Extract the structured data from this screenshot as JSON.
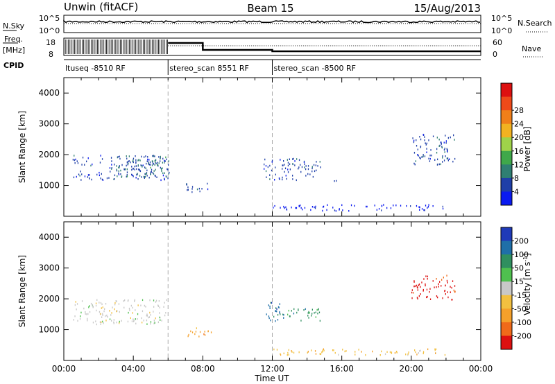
{
  "header": {
    "station": "Unwin (fitACF)",
    "beam": "Beam 15",
    "date": "15/Aug/2013"
  },
  "strip_labels": {
    "nsky": "N.Sky",
    "nsky_top": "10^5",
    "nsky_bottom": "10^0",
    "nsearch": "N.Search",
    "nsearch_top": "10^5",
    "nsearch_bottom": "10^0",
    "freq_line1": "Freq.",
    "freq_line2": "[MHz]",
    "freq_top": "18",
    "freq_bottom": "8",
    "nave": "Nave",
    "nave_top": "60",
    "nave_bottom": "0",
    "cpid": "CPID"
  },
  "cpid_segments": [
    {
      "label": "ltuseq -8510 RF",
      "start": 0,
      "end": 6
    },
    {
      "label": "stereo_scan 8551 RF",
      "start": 6,
      "end": 12
    },
    {
      "label": "stereo_scan -8500 RF",
      "start": 12,
      "end": 24
    }
  ],
  "colors": {
    "power_scale": [
      "#0a1af0",
      "#1f3fa8",
      "#2f7f72",
      "#3fa84a",
      "#9fd24a",
      "#f2b221",
      "#f07f1a",
      "#ee4a1a",
      "#dd1010"
    ],
    "velocity_scale": [
      "#1f3ab8",
      "#1f6fa8",
      "#2f8f5f",
      "#4fc04f",
      "#c8c8c8",
      "#f2c040",
      "#f5a02a",
      "#f06a1a",
      "#dd1010"
    ]
  },
  "chart_data": [
    {
      "type": "heatmap",
      "name_panel": "power",
      "xlabel": "Time UT",
      "ylabel": "Slant Range [km]",
      "x_range_hours": [
        0,
        24
      ],
      "x_ticks": [
        "00:00",
        "04:00",
        "08:00",
        "12:00",
        "16:00",
        "20:00",
        "00:00"
      ],
      "ylim": [
        0,
        4500
      ],
      "y_ticks": [
        1000,
        2000,
        3000,
        4000
      ],
      "colorbar_label": "Power [dB]",
      "colorbar_ticks": [
        "4",
        "8",
        "12",
        "16",
        "20",
        "24",
        "28"
      ],
      "scatter_regions": [
        {
          "t": [
            0.5,
            6.0
          ],
          "r": [
            1200,
            2000
          ],
          "level": 1
        },
        {
          "t": [
            3.0,
            6.1
          ],
          "r": [
            1300,
            2000
          ],
          "level": 2
        },
        {
          "t": [
            7.0,
            8.5
          ],
          "r": [
            800,
            1100
          ],
          "level": 1
        },
        {
          "t": [
            11.5,
            14.8
          ],
          "r": [
            1200,
            1900
          ],
          "level": 1
        },
        {
          "t": [
            15.5,
            16.2
          ],
          "r": [
            1100,
            1200
          ],
          "level": 1
        },
        {
          "t": [
            20.0,
            22.5
          ],
          "r": [
            1700,
            2700
          ],
          "level": 1
        },
        {
          "t": [
            12.0,
            22.0
          ],
          "r": [
            200,
            400
          ],
          "level": 0
        }
      ]
    },
    {
      "type": "heatmap",
      "name_panel": "velocity",
      "xlabel": "Time UT",
      "ylabel": "Slant Range [km]",
      "x_range_hours": [
        0,
        24
      ],
      "x_ticks": [
        "00:00",
        "04:00",
        "08:00",
        "12:00",
        "16:00",
        "20:00",
        "00:00"
      ],
      "ylim": [
        0,
        4500
      ],
      "y_ticks": [
        1000,
        2000,
        3000,
        4000
      ],
      "colorbar_label": "Velocity [m s^-1]",
      "colorbar_ticks": [
        "200",
        "100",
        "50",
        "15",
        "-15",
        "-50",
        "-100",
        "-200"
      ],
      "scatter_regions": [
        {
          "t": [
            0.5,
            6.0
          ],
          "r": [
            1200,
            2000
          ],
          "level": 4
        },
        {
          "t": [
            7.0,
            8.5
          ],
          "r": [
            800,
            1100
          ],
          "level": 6
        },
        {
          "t": [
            11.5,
            12.8
          ],
          "r": [
            1300,
            1900
          ],
          "level": 1
        },
        {
          "t": [
            12.5,
            14.8
          ],
          "r": [
            1300,
            1700
          ],
          "level": 2
        },
        {
          "t": [
            20.0,
            22.5
          ],
          "r": [
            2000,
            2800
          ],
          "level": 8
        },
        {
          "t": [
            12.0,
            22.0
          ],
          "r": [
            200,
            400
          ],
          "level": 5
        }
      ]
    }
  ]
}
